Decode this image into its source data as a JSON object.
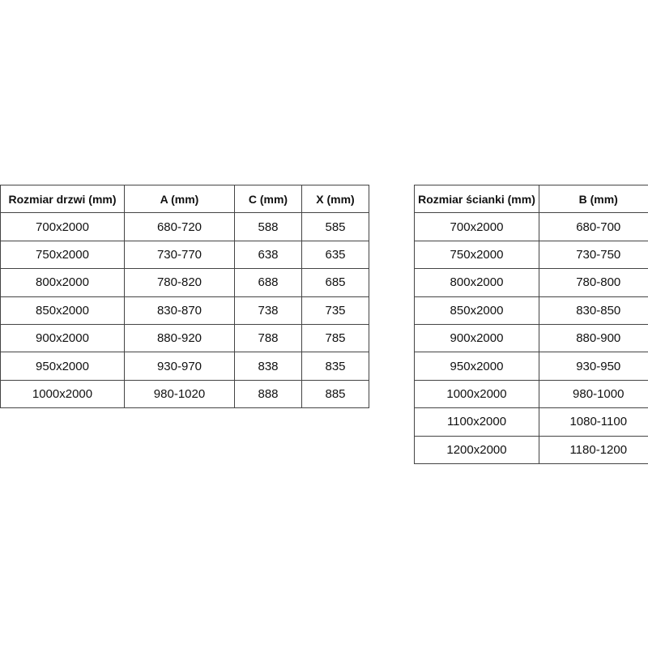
{
  "door_table": {
    "headers": [
      "Rozmiar drzwi (mm)",
      "A (mm)",
      "C (mm)",
      "X (mm)"
    ],
    "rows": [
      [
        "700x2000",
        "680-720",
        "588",
        "585"
      ],
      [
        "750x2000",
        "730-770",
        "638",
        "635"
      ],
      [
        "800x2000",
        "780-820",
        "688",
        "685"
      ],
      [
        "850x2000",
        "830-870",
        "738",
        "735"
      ],
      [
        "900x2000",
        "880-920",
        "788",
        "785"
      ],
      [
        "950x2000",
        "930-970",
        "838",
        "835"
      ],
      [
        "1000x2000",
        "980-1020",
        "888",
        "885"
      ]
    ]
  },
  "wall_table": {
    "headers": [
      "Rozmiar ścianki (mm)",
      "B (mm)"
    ],
    "rows": [
      [
        "700x2000",
        "680-700"
      ],
      [
        "750x2000",
        "730-750"
      ],
      [
        "800x2000",
        "780-800"
      ],
      [
        "850x2000",
        "830-850"
      ],
      [
        "900x2000",
        "880-900"
      ],
      [
        "950x2000",
        "930-950"
      ],
      [
        "1000x2000",
        "980-1000"
      ],
      [
        "1100x2000",
        "1080-1100"
      ],
      [
        "1200x2000",
        "1180-1200"
      ]
    ]
  }
}
